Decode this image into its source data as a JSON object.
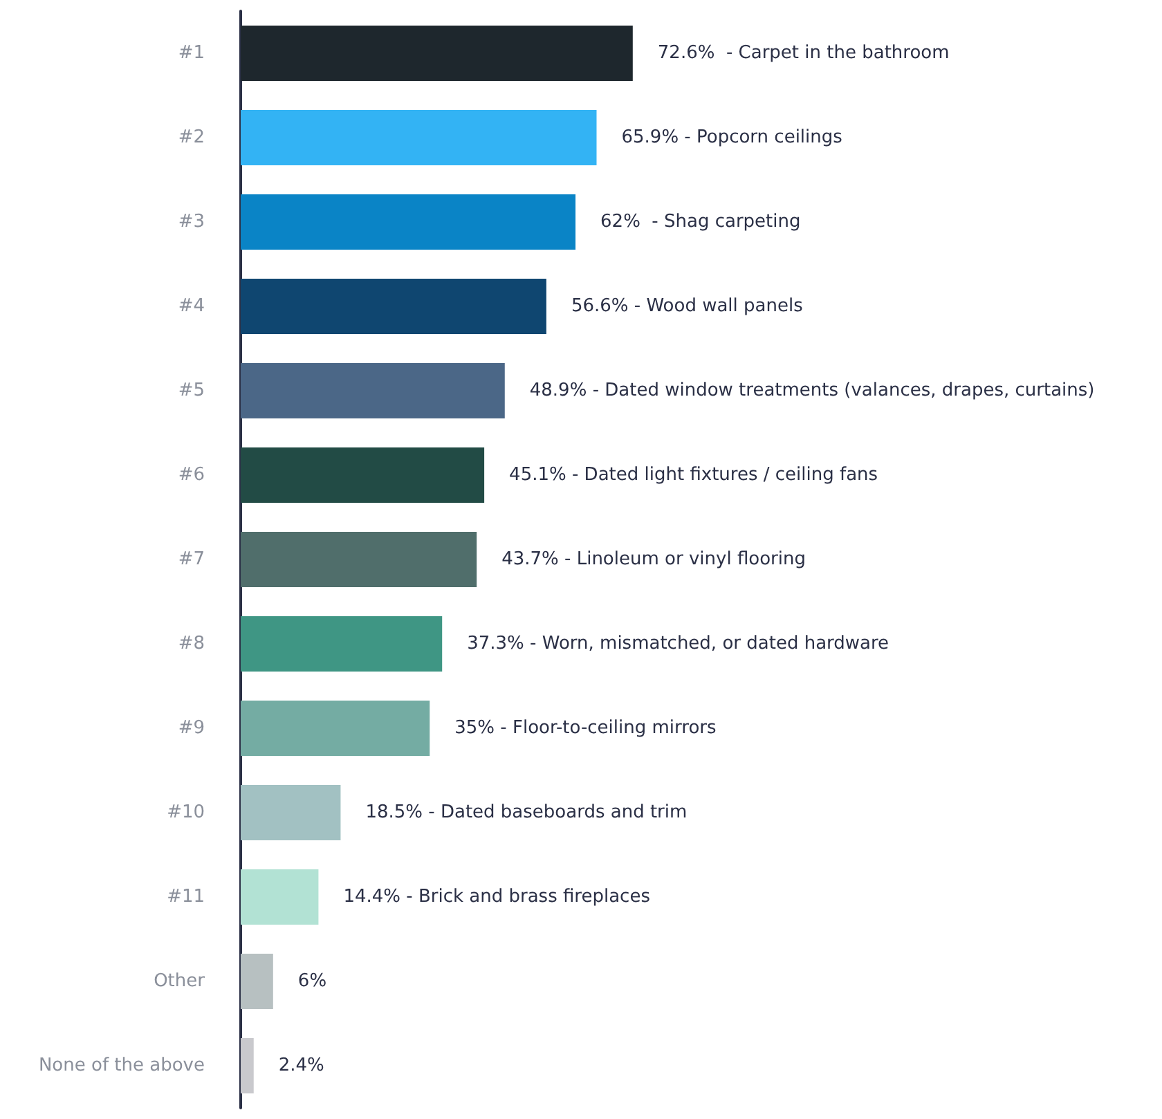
{
  "chart_data": {
    "type": "bar",
    "orientation": "horizontal",
    "categories": [
      "#1",
      "#2",
      "#3",
      "#4",
      "#5",
      "#6",
      "#7",
      "#8",
      "#9",
      "#10",
      "#11",
      "Other",
      "None of the above"
    ],
    "values": [
      72.6,
      65.9,
      62,
      56.6,
      48.9,
      45.1,
      43.7,
      37.3,
      35,
      18.5,
      14.4,
      6,
      2.4
    ],
    "colors": [
      "#1e272d",
      "#33b3f4",
      "#0a84c6",
      "#0f4670",
      "#4b6787",
      "#224b45",
      "#506e6b",
      "#3f9684",
      "#74aca3",
      "#a2c1c2",
      "#b2e2d4",
      "#b7c0c1",
      "#c9c9cd"
    ],
    "value_labels": [
      "72.6%  - Carpet in the bathroom",
      "65.9% - Popcorn ceilings",
      "62%  - Shag carpeting",
      "56.6% - Wood wall panels",
      "48.9% - Dated window treatments (valances, drapes, curtains)",
      "45.1% - Dated light fixtures / ceiling fans",
      "43.7% - Linoleum or vinyl flooring",
      "37.3% - Worn, mismatched, or dated hardware",
      "35% - Floor-to-ceiling mirrors",
      "18.5% - Dated baseboards and trim",
      "14.4% - Brick and brass fireplaces",
      "6%",
      "2.4%"
    ],
    "grid": false
  }
}
